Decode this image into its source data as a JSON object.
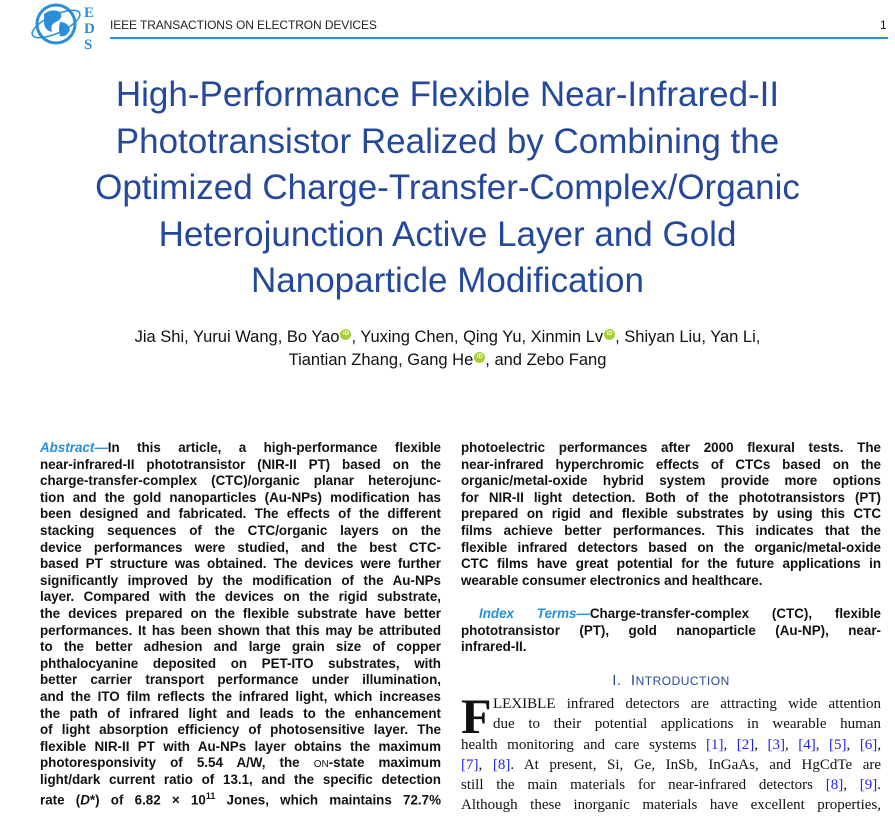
{
  "header": {
    "journal": "IEEE TRANSACTIONS ON ELECTRON DEVICES",
    "page_number": "1",
    "logo_letters": "EDS",
    "accent_color": "#2a8fd8"
  },
  "title": [
    "High-Performance Flexible Near-Infrared-II",
    "Phototransistor Realized by Combining the",
    "Optimized Charge-Transfer-Complex/Organic",
    "Heterojunction Active Layer and Gold",
    "Nanoparticle Modification"
  ],
  "authors": {
    "line1": [
      {
        "name": "Jia Shi, Yurui Wang, Bo Yao",
        "orcid": true
      },
      {
        "name": ", Yuxing Chen, Qing Yu, Xinmin Lv",
        "orcid": true
      },
      {
        "name": ", Shiyan Liu, Yan Li,",
        "orcid": false
      }
    ],
    "line2": [
      {
        "name": "Tiantian Zhang, Gang He",
        "orcid": true
      },
      {
        "name": ", and Zebo Fang",
        "orcid": false
      }
    ]
  },
  "abstract": {
    "label": "Abstract—",
    "lines": [
      "In this article, a high-performance flexible",
      "near-infrared-II phototransistor (NIR-II PT) based on the",
      "charge-transfer-complex (CTC)/organic planar heterojunc-",
      "tion and the gold nanoparticles (Au-NPs) modification has",
      "been designed and fabricated. The effects of the different",
      "stacking sequences of the CTC/organic layers on the",
      "device performances were studied, and the best CTC-",
      "based PT structure was obtained. The devices were further",
      "significantly improved by the modification of the Au-NPs",
      "layer. Compared with the devices on the rigid substrate,",
      "the devices prepared on the flexible substrate have better",
      "performances. It has been shown that this may be attributed",
      "to the better adhesion and large grain size of copper",
      "phthalocyanine deposited on PET-ITO substrates, with",
      "better carrier transport performance under illumination,",
      "and the ITO film reflects the infrared light, which increases",
      "the path of infrared light and leads to the enhancement",
      "of light absorption efficiency of photosensitive layer. The",
      "flexible NIR-II PT with Au-NPs layer obtains the maximum",
      "photoresponsivity of 5.54 A/W, the ON-state maximum",
      "light/dark current ratio of 13.1, and the specific detection",
      "rate (D*) of 6.82 × 10^11 Jones, which maintains 72.7%"
    ],
    "right_lines": [
      "photoelectric performances after 2000 flexural tests. The",
      "near-infrared hyperchromic effects of CTCs based on the",
      "organic/metal-oxide hybrid system provide more options",
      "for NIR-II light detection. Both of the phototransistors (PT)",
      "prepared on rigid and flexible substrates by using this CTC",
      "films achieve better performances. This indicates that the",
      "flexible infrared detectors based on the organic/metal-oxide",
      "CTC films have great potential for the future applications in",
      "wearable consumer electronics and healthcare."
    ]
  },
  "index_terms": {
    "label": "Index Terms—",
    "lines": [
      "Charge-transfer-complex (CTC), flexible",
      "phototransistor (PT), gold nanoparticle (Au-NP), near-",
      "infrared-II."
    ]
  },
  "section": {
    "number": "I.",
    "title": "Introduction"
  },
  "intro": {
    "dropcap": "F",
    "lines": [
      "LEXIBLE infrared detectors are attracting wide attention",
      "due to their potential applications in wearable human",
      "health monitoring and care systems [1], [2], [3], [4], [5], [6],",
      "[7], [8]. At present, Si, Ge, InSb, InGaAs, and HgCdTe are",
      "still the main materials for near-infrared detectors [8], [9].",
      "Although these inorganic materials have excellent properties,"
    ]
  }
}
